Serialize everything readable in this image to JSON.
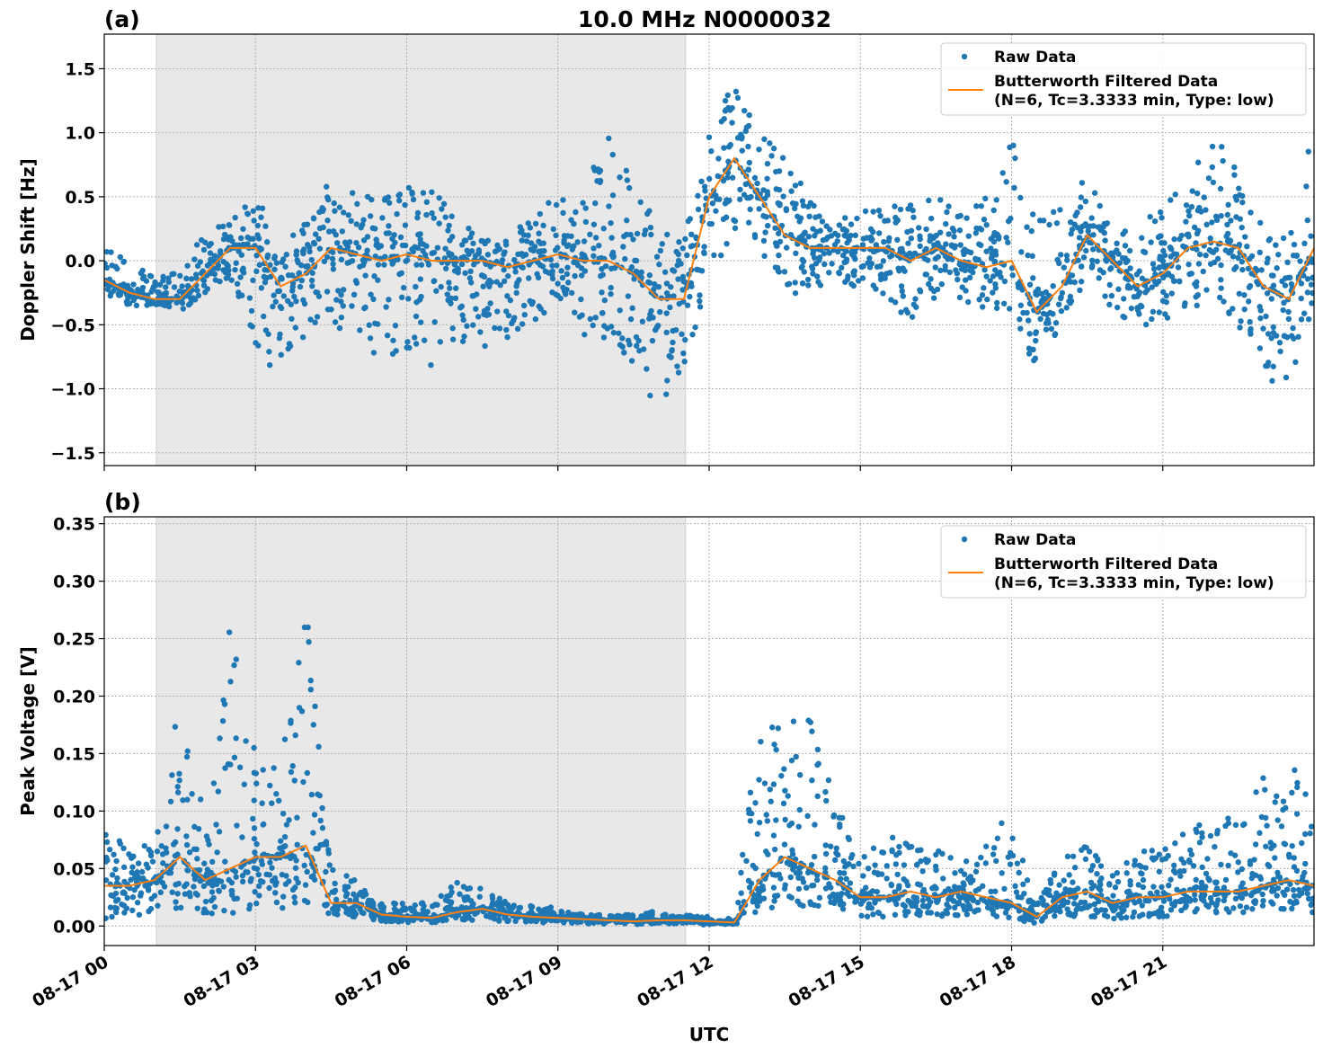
{
  "title": "10.0 MHz N0000032",
  "colors": {
    "raw": "#1f77b4",
    "filtered": "#ff7f0e",
    "shade": "#e8e8e8",
    "grid": "#b0b0b0"
  },
  "chart_data": [
    {
      "type": "scatter",
      "panel_label": "(a)",
      "ylabel": "Doppler Shift [Hz]",
      "xlabel": "",
      "xlim_hours": [
        0,
        24
      ],
      "ylim": [
        -1.6,
        1.77
      ],
      "yticks": [
        -1.5,
        -1.0,
        -0.5,
        0.0,
        0.5,
        1.0,
        1.5
      ],
      "ytick_labels": [
        "−1.5",
        "−1.0",
        "−0.5",
        "0.0",
        "0.5",
        "1.0",
        "1.5"
      ],
      "grid": true,
      "legend_placement": "top-right",
      "legend": [
        "Raw Data",
        "Butterworth Filtered Data",
        "(N=6, Tc=3.3333 min, Type: low)"
      ],
      "shaded_span_utc": [
        "08-17 01:02",
        "08-17 11:32"
      ],
      "x_hours": [
        0,
        0.5,
        1,
        1.5,
        2,
        2.5,
        3,
        3.5,
        4,
        4.5,
        5,
        5.5,
        6,
        6.5,
        7,
        7.5,
        8,
        8.5,
        9,
        9.5,
        10,
        10.5,
        11,
        11.5,
        12,
        12.5,
        13,
        13.5,
        14,
        14.5,
        15,
        15.5,
        16,
        16.5,
        17,
        17.5,
        18,
        18.5,
        19,
        19.5,
        20,
        20.5,
        21,
        21.5,
        22,
        22.5,
        23,
        23.5,
        24
      ],
      "series": [
        {
          "name": "Butterworth Filtered Data",
          "values": [
            -0.15,
            -0.25,
            -0.3,
            -0.3,
            -0.1,
            0.1,
            0.1,
            -0.2,
            -0.1,
            0.1,
            0.05,
            0.0,
            0.05,
            0.0,
            0.0,
            0.0,
            -0.05,
            0.0,
            0.05,
            0.0,
            0.0,
            -0.1,
            -0.3,
            -0.3,
            0.5,
            0.8,
            0.5,
            0.2,
            0.1,
            0.1,
            0.1,
            0.1,
            0.0,
            0.1,
            0.0,
            -0.05,
            0.0,
            -0.4,
            -0.2,
            0.2,
            0.0,
            -0.2,
            -0.1,
            0.1,
            0.15,
            0.1,
            -0.2,
            -0.3,
            0.1
          ]
        },
        {
          "name": "Raw Data",
          "min": [
            -0.25,
            -0.35,
            -0.35,
            -0.4,
            -0.25,
            -0.15,
            -0.85,
            -0.8,
            -0.6,
            -0.5,
            -0.6,
            -0.8,
            -0.7,
            -0.9,
            -0.6,
            -0.8,
            -0.6,
            -0.5,
            -0.4,
            -0.6,
            -0.6,
            -0.8,
            -1.2,
            -0.9,
            -0.1,
            0.2,
            0.1,
            -0.3,
            -0.2,
            -0.2,
            -0.2,
            -0.3,
            -0.5,
            -0.3,
            -0.4,
            -0.4,
            -0.4,
            -0.9,
            -0.5,
            -0.2,
            -0.4,
            -0.5,
            -0.5,
            -0.4,
            -0.3,
            -0.5,
            -0.9,
            -1.1,
            -0.3
          ],
          "max": [
            0.1,
            0.0,
            -0.1,
            -0.1,
            0.3,
            0.3,
            0.55,
            0.1,
            0.3,
            0.7,
            0.5,
            0.5,
            0.7,
            0.6,
            0.3,
            0.2,
            0.2,
            0.4,
            0.5,
            0.6,
            1.0,
            0.6,
            0.3,
            0.2,
            1.0,
            1.4,
            1.0,
            0.8,
            0.5,
            0.3,
            0.4,
            0.4,
            0.5,
            0.5,
            0.4,
            0.5,
            1.0,
            0.3,
            0.5,
            0.7,
            0.2,
            0.3,
            0.4,
            0.7,
            1.0,
            0.7,
            0.3,
            0.2,
            1.3
          ]
        }
      ]
    },
    {
      "type": "scatter",
      "panel_label": "(b)",
      "ylabel": "Peak Voltage [V]",
      "xlabel": "UTC",
      "xlim_hours": [
        0,
        24
      ],
      "ylim": [
        -0.017,
        0.356
      ],
      "yticks": [
        0.0,
        0.05,
        0.1,
        0.15,
        0.2,
        0.25,
        0.3,
        0.35
      ],
      "ytick_labels": [
        "0.00",
        "0.05",
        "0.10",
        "0.15",
        "0.20",
        "0.25",
        "0.30",
        "0.35"
      ],
      "xticks_hours": [
        0,
        3,
        6,
        9,
        12,
        15,
        18,
        21
      ],
      "xtick_labels": [
        "08-17 00",
        "08-17 03",
        "08-17 06",
        "08-17 09",
        "08-17 12",
        "08-17 15",
        "08-17 18",
        "08-17 21"
      ],
      "grid": true,
      "legend_placement": "top-right",
      "legend": [
        "Raw Data",
        "Butterworth Filtered Data",
        "(N=6, Tc=3.3333 min, Type: low)"
      ],
      "shaded_span_utc": [
        "08-17 01:02",
        "08-17 11:32"
      ],
      "x_hours": [
        0,
        0.5,
        1,
        1.5,
        2,
        2.5,
        3,
        3.5,
        4,
        4.5,
        5,
        5.5,
        6,
        6.5,
        7,
        7.5,
        8,
        8.5,
        9,
        9.5,
        10,
        10.5,
        11,
        11.5,
        12,
        12.5,
        13,
        13.5,
        14,
        14.5,
        15,
        15.5,
        16,
        16.5,
        17,
        17.5,
        18,
        18.5,
        19,
        19.5,
        20,
        20.5,
        21,
        21.5,
        22,
        22.5,
        23,
        23.5,
        24
      ],
      "series": [
        {
          "name": "Butterworth Filtered Data",
          "values": [
            0.035,
            0.035,
            0.04,
            0.06,
            0.04,
            0.05,
            0.06,
            0.06,
            0.07,
            0.02,
            0.02,
            0.01,
            0.008,
            0.007,
            0.012,
            0.015,
            0.01,
            0.008,
            0.007,
            0.006,
            0.005,
            0.004,
            0.005,
            0.005,
            0.004,
            0.003,
            0.04,
            0.06,
            0.05,
            0.04,
            0.025,
            0.025,
            0.03,
            0.025,
            0.03,
            0.025,
            0.02,
            0.008,
            0.025,
            0.03,
            0.02,
            0.025,
            0.025,
            0.03,
            0.03,
            0.03,
            0.035,
            0.04,
            0.035
          ]
        },
        {
          "name": "Raw Data",
          "min": [
            0.005,
            0.005,
            0.01,
            0.01,
            0.01,
            0.01,
            0.015,
            0.015,
            0.02,
            0.01,
            0.008,
            0.004,
            0.003,
            0.003,
            0.004,
            0.005,
            0.004,
            0.003,
            0.003,
            0.002,
            0.002,
            0.001,
            0.002,
            0.002,
            0.001,
            0.001,
            0.01,
            0.02,
            0.015,
            0.01,
            0.008,
            0.008,
            0.008,
            0.008,
            0.008,
            0.008,
            0.006,
            0.002,
            0.008,
            0.008,
            0.006,
            0.008,
            0.008,
            0.01,
            0.01,
            0.01,
            0.01,
            0.012,
            0.01
          ],
          "max": [
            0.08,
            0.07,
            0.07,
            0.2,
            0.1,
            0.27,
            0.15,
            0.16,
            0.28,
            0.05,
            0.04,
            0.02,
            0.02,
            0.02,
            0.04,
            0.035,
            0.02,
            0.02,
            0.015,
            0.01,
            0.01,
            0.01,
            0.015,
            0.01,
            0.008,
            0.006,
            0.18,
            0.2,
            0.18,
            0.11,
            0.06,
            0.08,
            0.07,
            0.07,
            0.06,
            0.07,
            0.11,
            0.02,
            0.06,
            0.07,
            0.05,
            0.06,
            0.08,
            0.08,
            0.1,
            0.09,
            0.14,
            0.15,
            0.1
          ]
        }
      ]
    }
  ]
}
